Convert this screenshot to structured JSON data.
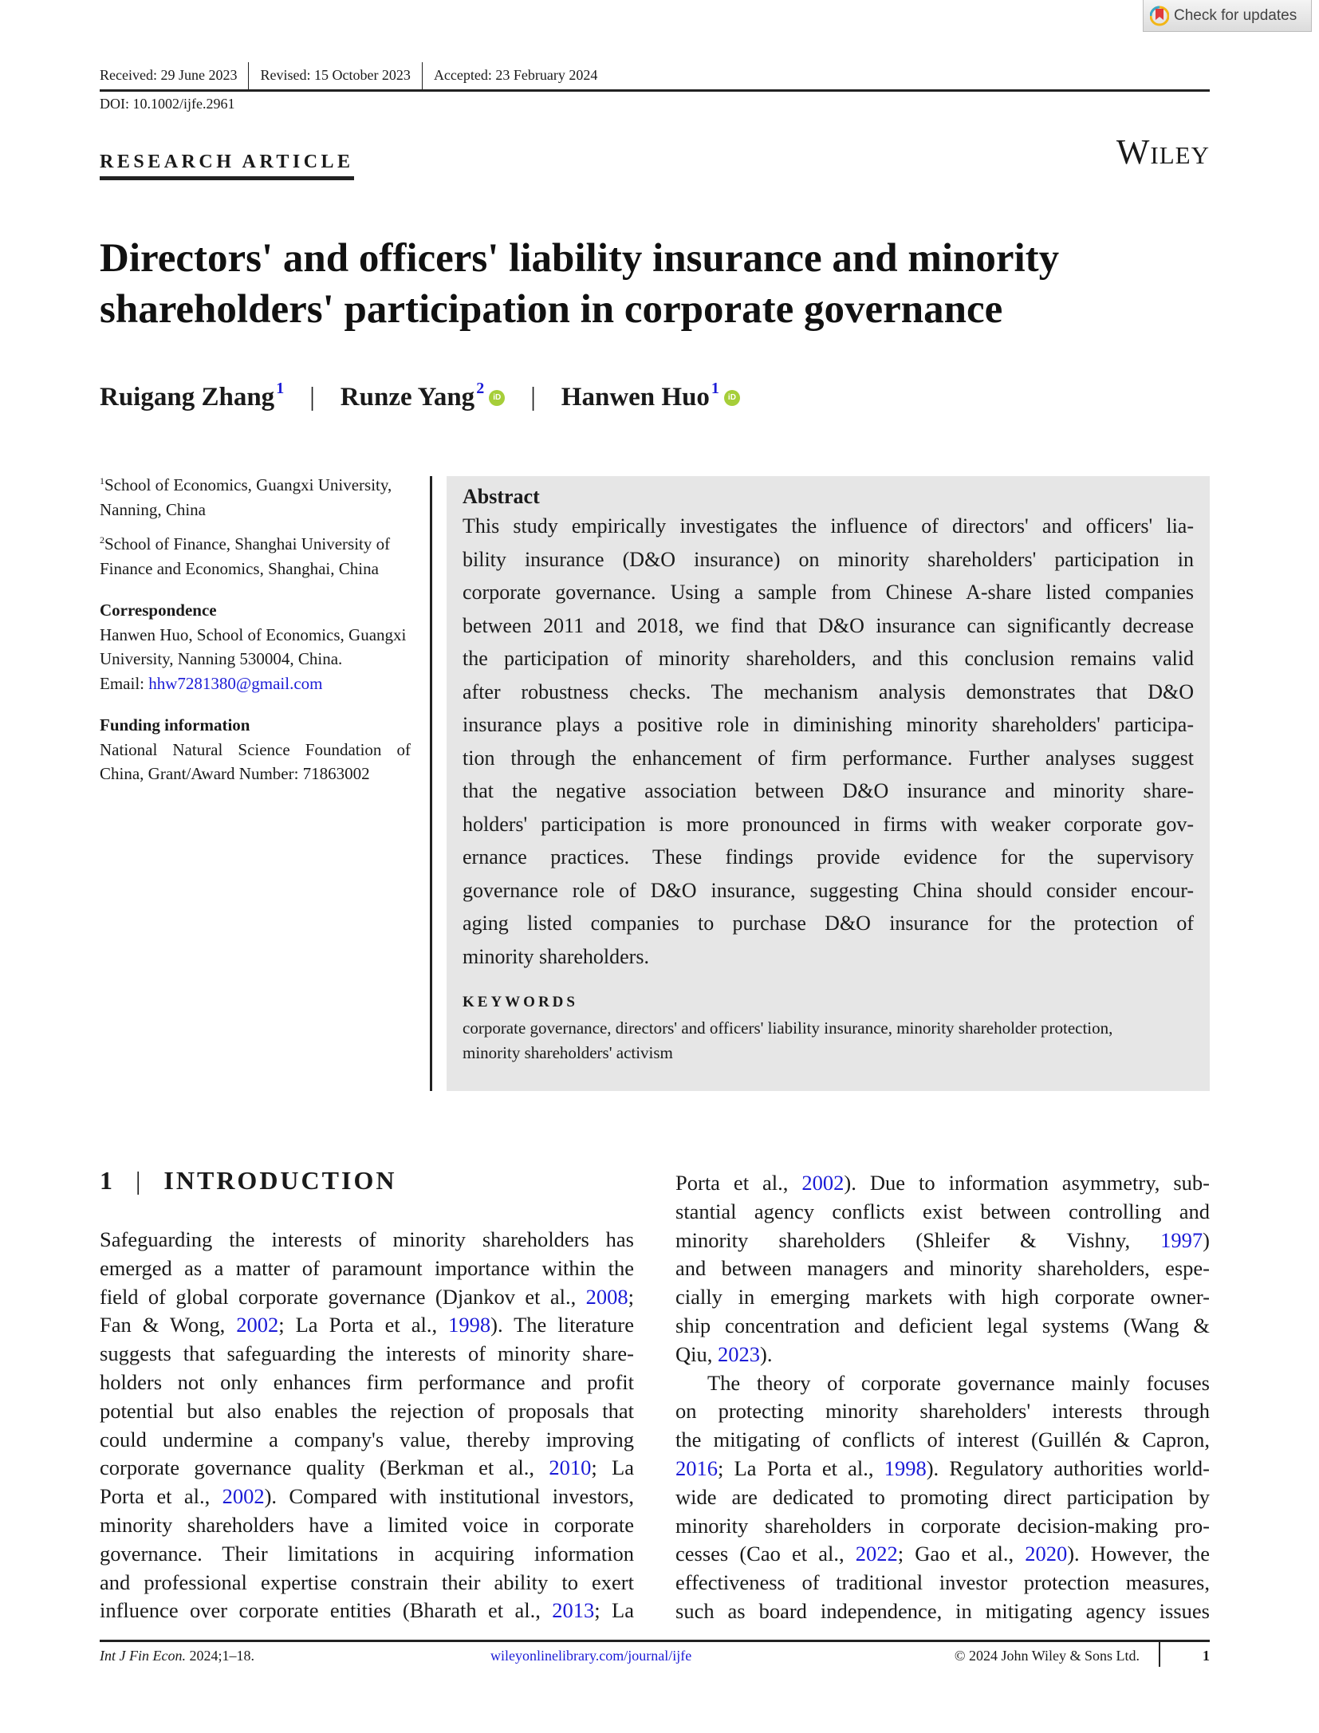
{
  "check_updates": {
    "label": "Check for updates",
    "icon": "bookmark-crossmark-icon"
  },
  "header": {
    "received": "Received: 29 June 2023",
    "revised": "Revised: 15 October 2023",
    "accepted": "Accepted: 23 February 2024",
    "doi": "DOI: 10.1002/ijfe.2961",
    "article_type": "RESEARCH ARTICLE",
    "publisher": "Wiley"
  },
  "title_lines": [
    "Directors' and officers' liability insurance and minority",
    "shareholders' participation in corporate governance"
  ],
  "authors": [
    {
      "name": "Ruigang Zhang",
      "sup": "1",
      "orcid": false
    },
    {
      "name": "Runze Yang",
      "sup": "2",
      "orcid": true
    },
    {
      "name": "Hanwen Huo",
      "sup": "1",
      "orcid": true
    }
  ],
  "author_separator": "|",
  "orcid_label": "iD",
  "affiliations": [
    {
      "sup": "1",
      "text": "School of Economics, Guangxi University, Nanning, China"
    },
    {
      "sup": "2",
      "text": "School of Finance, Shanghai University of Finance and Economics, Shanghai, China"
    }
  ],
  "correspondence": {
    "heading": "Correspondence",
    "text": "Hanwen Huo, School of Economics, Guangxi University, Nanning 530004, China.",
    "email_label": "Email: ",
    "email": "hhw7281380@gmail.com"
  },
  "funding": {
    "heading": "Funding information",
    "text": "National Natural Science Foundation of China, Grant/Award Number: 71863002"
  },
  "abstract": {
    "heading": "Abstract",
    "lines": [
      "This study empirically investigates the influence of directors' and officers' lia-",
      "bility insurance (D&O insurance) on minority shareholders' participation in",
      "corporate governance. Using a sample from Chinese A-share listed companies",
      "between 2011 and 2018, we find that D&O insurance can significantly decrease",
      "the participation of minority shareholders, and this conclusion remains valid",
      "after robustness checks. The mechanism analysis demonstrates that D&O",
      "insurance plays a positive role in diminishing minority shareholders' participa-",
      "tion through the enhancement of firm performance. Further analyses suggest",
      "that the negative association between D&O insurance and minority share-",
      "holders' participation is more pronounced in firms with weaker corporate gov-",
      "ernance practices. These findings provide evidence for the supervisory",
      "governance role of D&O insurance, suggesting China should consider encour-",
      "aging listed companies to purchase D&O insurance for the protection of",
      "minority shareholders."
    ],
    "keywords_heading": "KEYWORDS",
    "keywords": "corporate governance, directors' and officers' liability insurance, minority shareholder protection, minority shareholders' activism"
  },
  "intro": {
    "number": "1",
    "bar": "|",
    "heading": "INTRODUCTION",
    "left": [
      [
        [
          "Safeguarding the interests of minority shareholders has"
        ],
        [
          "emerged as a matter of paramount importance within the"
        ],
        [
          "field of global corporate governance (Djankov et al., ",
          {
            "t": "2008",
            "link": true
          },
          ";"
        ],
        [
          "Fan & Wong, ",
          {
            "t": "2002",
            "link": true
          },
          "; La Porta et al., ",
          {
            "t": "1998",
            "link": true
          },
          "). The literature"
        ],
        [
          "suggests that safeguarding the interests of minority share-"
        ],
        [
          "holders not only enhances firm performance and profit"
        ],
        [
          "potential but also enables the rejection of proposals that"
        ],
        [
          "could undermine a company's value, thereby improving"
        ],
        [
          "corporate governance quality (Berkman et al., ",
          {
            "t": "2010",
            "link": true
          },
          "; La"
        ],
        [
          "Porta et al., ",
          {
            "t": "2002",
            "link": true
          },
          "). Compared with institutional investors,"
        ],
        [
          "minority shareholders have a limited voice in corporate"
        ],
        [
          "governance. Their limitations in acquiring information"
        ],
        [
          "and professional expertise constrain their ability to exert"
        ],
        [
          "influence over corporate entities (Bharath et al., ",
          {
            "t": "2013",
            "link": true
          },
          "; La"
        ]
      ]
    ],
    "right": [
      [
        [
          "Porta et al., ",
          {
            "t": "2002",
            "link": true
          },
          "). Due to information asymmetry, sub-"
        ],
        [
          "stantial agency conflicts exist between controlling and"
        ],
        [
          "minority shareholders (Shleifer & Vishny, ",
          {
            "t": "1997",
            "link": true
          },
          ")"
        ],
        [
          "and between managers and minority shareholders, espe-"
        ],
        [
          "cially in emerging markets with high corporate owner-"
        ],
        [
          "ship concentration and deficient legal systems (Wang &"
        ],
        [
          "Qiu, ",
          {
            "t": "2023",
            "link": true
          },
          ")."
        ]
      ],
      [
        [
          "The theory of corporate governance mainly focuses"
        ],
        [
          "on protecting minority shareholders' interests through"
        ],
        [
          "the mitigating of conflicts of interest (Guillén & Capron,"
        ],
        [
          {
            "t": "2016",
            "link": true
          },
          "; La Porta et al., ",
          {
            "t": "1998",
            "link": true
          },
          "). Regulatory authorities world-"
        ],
        [
          "wide are dedicated to promoting direct participation by"
        ],
        [
          "minority shareholders in corporate decision-making pro-"
        ],
        [
          "cesses (Cao et al., ",
          {
            "t": "2022",
            "link": true
          },
          "; Gao et al., ",
          {
            "t": "2020",
            "link": true
          },
          "). However, the"
        ],
        [
          "effectiveness of traditional investor protection measures,"
        ],
        [
          "such as board independence, in mitigating agency issues"
        ]
      ]
    ]
  },
  "footer": {
    "journal": "Int J Fin Econ.",
    "citation": " 2024;1–18.",
    "url": "wileyonlinelibrary.com/journal/ijfe",
    "copyright": "© 2024 John Wiley & Sons Ltd.",
    "page": "1"
  },
  "colors": {
    "link": "#1b1bd6",
    "abstract_bg": "#e6e6e6",
    "orcid": "#a6ce39"
  }
}
